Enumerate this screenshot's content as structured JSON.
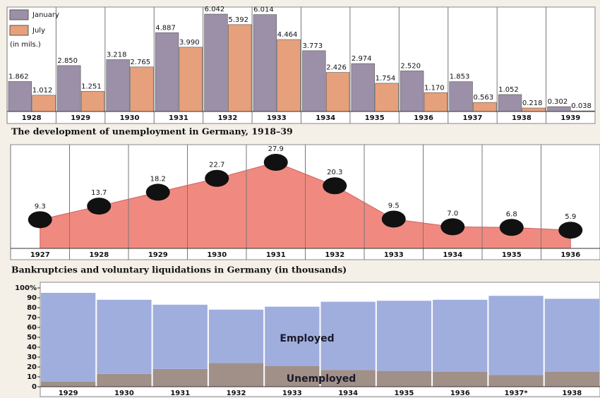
{
  "chart_data": [
    {
      "type": "bar",
      "title": "The development of unemployment in Germany, 1918–39",
      "unit_note": "(in mils.)",
      "legend": "upper left",
      "categories": [
        "1928",
        "1929",
        "1930",
        "1931",
        "1932",
        "1933",
        "1934",
        "1935",
        "1936",
        "1937",
        "1938",
        "1939"
      ],
      "series": [
        {
          "name": "January",
          "color": "#9c90a8",
          "values": [
            1.862,
            2.85,
            3.218,
            4.887,
            6.042,
            6.014,
            3.773,
            2.974,
            2.52,
            1.853,
            1.052,
            0.302
          ],
          "value_labels": [
            "1.862",
            "2.850",
            "3.218",
            "4.887",
            "6.042",
            "6.014",
            "3.773",
            "2.974",
            "2.520",
            "1.853",
            "1.052",
            "0.302"
          ]
        },
        {
          "name": "July",
          "color": "#e7a07c",
          "values": [
            1.012,
            1.251,
            2.765,
            3.99,
            5.392,
            4.464,
            2.426,
            1.754,
            1.17,
            0.563,
            0.218,
            0.038
          ],
          "value_labels": [
            "1.012",
            "1.251",
            "2.765",
            "3.990",
            "5.392",
            "4.464",
            "2.426",
            "1.754",
            "1.170",
            "0.563",
            "0.218",
            "0.038"
          ]
        }
      ]
    },
    {
      "type": "area",
      "title": "Bankruptcies and voluntary liquidations in Germany (in thousands)",
      "color": "#f08a80",
      "categories": [
        "1927",
        "1928",
        "1929",
        "1930",
        "1931",
        "1932",
        "1933",
        "1934",
        "1935",
        "1936"
      ],
      "values": [
        9.3,
        13.7,
        18.2,
        22.7,
        27.9,
        20.3,
        9.5,
        7.0,
        6.8,
        5.9
      ],
      "value_labels": [
        "9.3",
        "13.7",
        "18.2",
        "22.7",
        "27.9",
        "20.3",
        "9.5",
        "7.0",
        "6.8",
        "5.9"
      ]
    },
    {
      "type": "stacked_bar",
      "categories": [
        "1929",
        "1930",
        "1931",
        "1932",
        "1933",
        "1934",
        "1935",
        "1936",
        "1937*",
        "1938"
      ],
      "ylim": [
        0,
        100
      ],
      "yticks": [
        0,
        10,
        20,
        30,
        40,
        50,
        60,
        70,
        80,
        90,
        {
          "value": 100,
          "label": "100%"
        }
      ],
      "series": [
        {
          "name": "Unemployed",
          "color": "#a09088",
          "values": [
            5,
            13,
            18,
            24,
            21,
            17,
            16,
            15,
            12,
            15
          ]
        },
        {
          "name": "Employed",
          "color": "#a0aede",
          "values": [
            90,
            75,
            65,
            54,
            60,
            69,
            71,
            73,
            80,
            74
          ]
        }
      ]
    }
  ]
}
